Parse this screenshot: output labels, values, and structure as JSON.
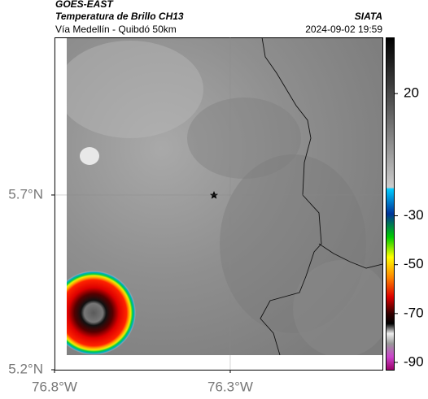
{
  "header": {
    "title": "GOES-EAST",
    "subtitle": "Temperatura de Brillo CH13",
    "source": "SIATA",
    "route": "Vía Medellín - Quibdó 50km",
    "datetime": "2024-09-02 19:59"
  },
  "map": {
    "lonlim": [
      -76.8,
      -75.867
    ],
    "latlim": [
      5.2,
      6.151
    ],
    "xticks": [
      {
        "value": -76.8,
        "label": "76.8°W"
      },
      {
        "value": -76.3,
        "label": "76.3°W"
      }
    ],
    "yticks": [
      {
        "value": 5.7,
        "label": "5.7°N"
      },
      {
        "value": 5.2,
        "label": "5.2°N"
      }
    ]
  },
  "colorbar": {
    "lim": [
      -93,
      43
    ],
    "ticks": [
      20,
      -30,
      -50,
      -70,
      -90
    ]
  }
}
